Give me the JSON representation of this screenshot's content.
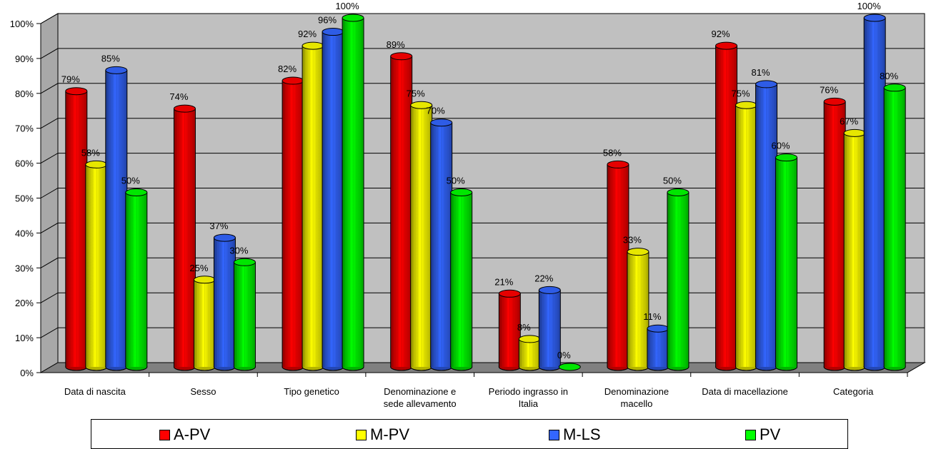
{
  "chart_data": {
    "type": "bar",
    "categories": [
      [
        "Data di nascita"
      ],
      [
        "Sesso"
      ],
      [
        "Tipo genetico"
      ],
      [
        "Denominazione e",
        "sede allevamento"
      ],
      [
        "Periodo ingrasso in",
        "Italia"
      ],
      [
        "Denominazione",
        "macello"
      ],
      [
        "Data di macellazione"
      ],
      [
        "Categoria"
      ]
    ],
    "series": [
      {
        "name": "A-PV",
        "color": "#ff0000",
        "values": [
          79,
          74,
          82,
          89,
          21,
          58,
          92,
          76
        ]
      },
      {
        "name": "M-PV",
        "color": "#ffff00",
        "values": [
          58,
          25,
          92,
          75,
          8,
          33,
          75,
          67
        ]
      },
      {
        "name": "M-LS",
        "color": "#3366ff",
        "values": [
          85,
          37,
          96,
          70,
          22,
          11,
          81,
          100
        ]
      },
      {
        "name": "PV",
        "color": "#00ff00",
        "values": [
          50,
          30,
          100,
          50,
          0,
          50,
          60,
          80
        ]
      }
    ],
    "y_ticks": [
      "0%",
      "10%",
      "20%",
      "30%",
      "40%",
      "50%",
      "60%",
      "70%",
      "80%",
      "90%",
      "100%"
    ],
    "ylim": [
      0,
      100
    ],
    "value_suffix": "%",
    "legend_position": "bottom",
    "grid": true,
    "wall_color": "#c0c0c0",
    "floor_color": "#808080"
  }
}
